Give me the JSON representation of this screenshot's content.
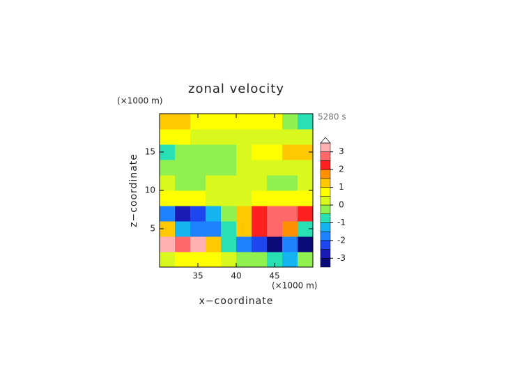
{
  "chart_data": {
    "type": "contour",
    "title": "zonal velocity",
    "y_unit": "(×1000 m)",
    "x_unit": "(×1000 m)",
    "time_label": "5280 s",
    "xlabel": "x−coordinate",
    "ylabel": "z−coordinate",
    "xlim": [
      30,
      50
    ],
    "ylim": [
      0,
      20
    ],
    "xticks": [
      35,
      40,
      45
    ],
    "yticks": [
      5,
      10,
      15
    ],
    "x": [
      31,
      33,
      35,
      37,
      39,
      41,
      43,
      45,
      47,
      49
    ],
    "z": [
      1,
      3,
      5,
      7,
      9,
      11,
      13,
      15,
      17,
      19
    ],
    "values": [
      [
        0.3,
        0.5,
        0.8,
        0.5,
        0.2,
        -0.3,
        -0.5,
        -1,
        -1.5,
        -0.5
      ],
      [
        3.2,
        2.5,
        3,
        1,
        -1,
        -2,
        -2.5,
        -3.6,
        -2,
        -3.6
      ],
      [
        1,
        -1.5,
        -2,
        -2,
        -1,
        1,
        2,
        2.5,
        1.5,
        -1
      ],
      [
        -2,
        -3,
        -2.5,
        -1.5,
        -0.5,
        1,
        2,
        2.5,
        2.8,
        2
      ],
      [
        0.8,
        0.7,
        0.6,
        0.3,
        0.2,
        0.3,
        0.6,
        0.7,
        0.7,
        0.8
      ],
      [
        0.3,
        -0.2,
        -0.3,
        0.3,
        0.3,
        0.3,
        0.3,
        -0.3,
        -0.2,
        0.3
      ],
      [
        -0.3,
        -0.3,
        -0.2,
        -0.2,
        -0.2,
        0.2,
        0.3,
        0.3,
        0.3,
        0.3
      ],
      [
        -1,
        -0.5,
        -0.3,
        -0.3,
        -0.2,
        0.3,
        0.5,
        0.8,
        1,
        1.2
      ],
      [
        0.5,
        0.5,
        0.2,
        0.2,
        0.2,
        0.2,
        0.2,
        0.2,
        0.2,
        0.2
      ],
      [
        1,
        1,
        0.5,
        0.5,
        0.5,
        0.5,
        0.5,
        0.5,
        -0.5,
        -1
      ]
    ],
    "levels": [
      -3.5,
      -3,
      -2.5,
      -2,
      -1.5,
      -1,
      -0.5,
      0,
      0.5,
      1,
      1.5,
      2,
      2.5,
      3,
      3.5
    ],
    "colors": [
      "#0a0a78",
      "#1a1ab4",
      "#1e46f0",
      "#1e82ff",
      "#14b4f0",
      "#28e0b4",
      "#90f050",
      "#d8f81e",
      "#ffff00",
      "#ffc800",
      "#ff9000",
      "#ff2020",
      "#ff6868",
      "#ffb0b0"
    ],
    "over_color": "#ffffff",
    "cbar_ticks": [
      -3,
      -2,
      -1,
      0,
      1,
      2,
      3
    ]
  }
}
